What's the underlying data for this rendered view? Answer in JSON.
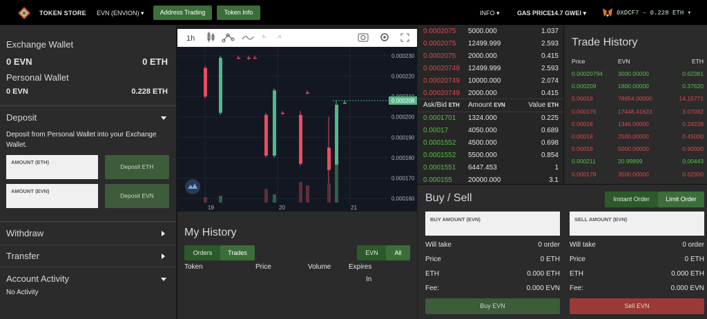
{
  "header": {
    "brand": "TOKEN STORE",
    "token_selector": "EVN (ENVION) ▾",
    "btn_address_trading": "Address Trading",
    "btn_token_info": "Token Info",
    "info": "INFO ▾",
    "gas_label": "GAS PRICE:",
    "gas_value": "14.7 GWEI ▾",
    "account": "0XDCF7 - 0.228 ETH ▾"
  },
  "wallet": {
    "exchange_title": "Exchange Wallet",
    "exchange_evn": "0 EVN",
    "exchange_eth": "0 ETH",
    "personal_title": "Personal Wallet",
    "personal_evn": "0 EVN",
    "personal_eth": "0.228 ETH"
  },
  "deposit": {
    "title": "Deposit",
    "desc": "Deposit from Personal Wallet into your Exchange Wallet.",
    "amount_eth_label": "AMOUNT (ETH)",
    "amount_evn_label": "AMOUNT (EVN)",
    "btn_eth": "Deposit ETH",
    "btn_evn": "Deposit EVN"
  },
  "sections": {
    "withdraw": "Withdraw",
    "transfer": "Transfer",
    "account_activity": "Account Activity",
    "no_activity": "No Activity"
  },
  "chart_toolbar": {
    "interval": "1h"
  },
  "chart_data": {
    "type": "candlestick",
    "y_ticks": [
      "0.000230",
      "0.000220",
      "0.000210",
      "0.000200",
      "0.000190",
      "0.000180",
      "0.000170",
      "0.000160"
    ],
    "x_ticks": [
      "19",
      "20",
      "21"
    ],
    "current_price_label": "0.000208",
    "ylim": [
      0.000158,
      0.000233
    ]
  },
  "history": {
    "title": "My History",
    "tab_orders": "Orders",
    "tab_trades": "Trades",
    "filter_evn": "EVN",
    "filter_all": "All",
    "col_token": "Token",
    "col_price": "Price",
    "col_volume": "Volume",
    "col_expires": "Expires",
    "col_in": "In"
  },
  "orderbook": {
    "asks": [
      {
        "price": "0.0002075",
        "amount": "5000.000",
        "value": "1.037"
      },
      {
        "price": "0.0002075",
        "amount": "12499.999",
        "value": "2.593"
      },
      {
        "price": "0.0002075",
        "amount": "2000.000",
        "value": "0.415"
      },
      {
        "price": "0.00020749",
        "amount": "12499.999",
        "value": "2.593"
      },
      {
        "price": "0.00020749",
        "amount": "10000.000",
        "value": "2.074"
      },
      {
        "price": "0.00020749",
        "amount": "2000.000",
        "value": "0.415"
      }
    ],
    "header_askbid": "Ask/Bid",
    "header_eth1": "ETH",
    "header_amount": "Amount",
    "header_evn": "EVN",
    "header_value": "Value",
    "header_eth2": "ETH",
    "bids": [
      {
        "price": "0.0001701",
        "amount": "1324.000",
        "value": "0.225"
      },
      {
        "price": "0.00017",
        "amount": "4050.000",
        "value": "0.689"
      },
      {
        "price": "0.0001552",
        "amount": "4500.000",
        "value": "0.698"
      },
      {
        "price": "0.0001552",
        "amount": "5500.000",
        "value": "0.854"
      },
      {
        "price": "0.0001551",
        "amount": "6447.453",
        "value": "1"
      },
      {
        "price": "0.000155",
        "amount": "20000.000",
        "value": "3.1"
      }
    ]
  },
  "trade_history": {
    "title": "Trade History",
    "col_price": "Price",
    "col_evn": "EVN",
    "col_eth": "ETH",
    "rows": [
      {
        "price": "0.00020794",
        "evn": "3000.00000",
        "eth": "0.62381",
        "side": "buy"
      },
      {
        "price": "0.000209",
        "evn": "1800.00000",
        "eth": "0.37620",
        "side": "buy"
      },
      {
        "price": "0.00018",
        "evn": "78654.00000",
        "eth": "14.15771",
        "side": "sell"
      },
      {
        "price": "0.000176",
        "evn": "17448.41623",
        "eth": "3.07092",
        "side": "sell"
      },
      {
        "price": "0.00018",
        "evn": "1346.00000",
        "eth": "0.24228",
        "side": "sell"
      },
      {
        "price": "0.00018",
        "evn": "2500.00000",
        "eth": "0.45000",
        "side": "sell"
      },
      {
        "price": "0.00018",
        "evn": "5000.00000",
        "eth": "0.90000",
        "side": "sell"
      },
      {
        "price": "0.000211",
        "evn": "20.99899",
        "eth": "0.00443",
        "side": "buy"
      },
      {
        "price": "0.000178",
        "evn": "3500.00000",
        "eth": "0.62300",
        "side": "sell"
      }
    ]
  },
  "buysell": {
    "title": "Buy / Sell",
    "tab_instant": "Instant Order",
    "tab_limit": "Limit Order",
    "buy_amount_label": "BUY AMOUNT (EVN)",
    "sell_amount_label": "SELL AMOUNT (EVN)",
    "will_take": "Will take",
    "will_take_val": "0 order",
    "price": "Price",
    "price_val": "0 ETH",
    "eth": "ETH",
    "eth_val": "0.000 ETH",
    "fee": "Fee:",
    "fee_val": "0.000 EVN",
    "btn_buy": "Buy EVN",
    "btn_sell": "Sell EVN"
  },
  "colors": {
    "green": "#3c6e3a",
    "red": "#e0484b",
    "buy_text": "#57c04a"
  }
}
